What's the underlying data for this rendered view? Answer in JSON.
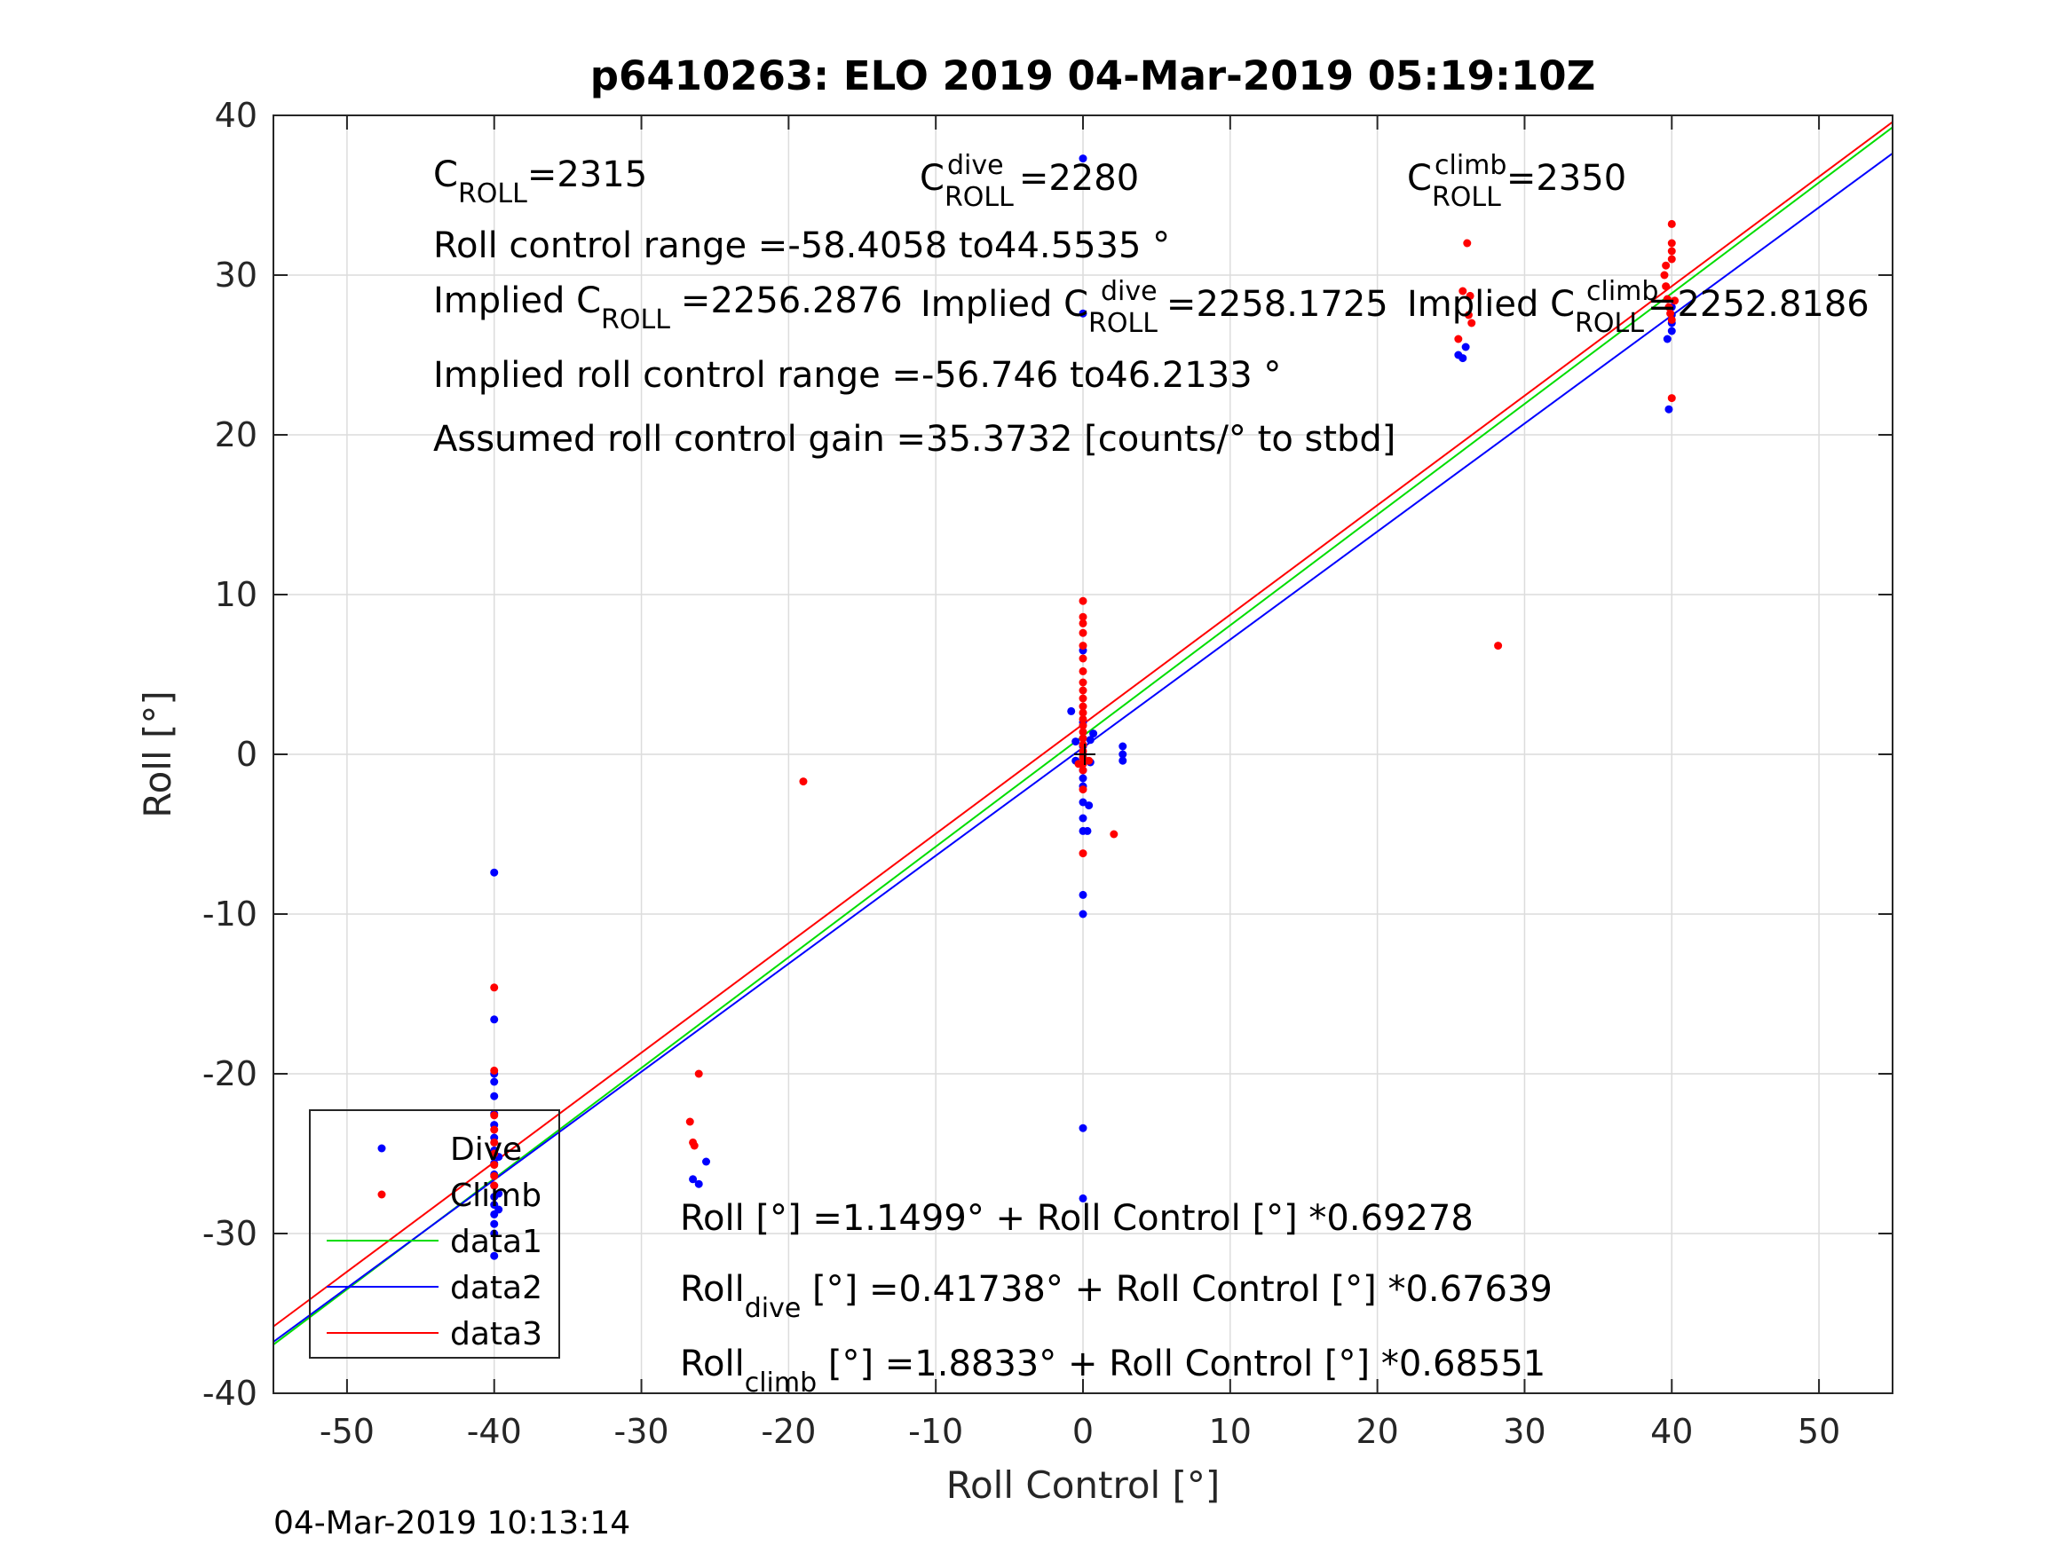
{
  "chart_data": {
    "type": "scatter",
    "title": "p6410263: ELO 2019 04-Mar-2019 05:19:10Z",
    "xlabel": "Roll Control [°]",
    "ylabel": "Roll [°]",
    "timestamp": "04-Mar-2019 10:13:14",
    "xlim": [
      -55,
      55
    ],
    "ylim": [
      -40,
      40
    ],
    "grid": true,
    "legend_position": "bottom-left",
    "xticks": [
      -50,
      -40,
      -30,
      -20,
      -10,
      0,
      10,
      20,
      30,
      40,
      50
    ],
    "yticks": [
      -40,
      -30,
      -20,
      -10,
      0,
      10,
      20,
      30,
      40
    ],
    "xtick_labels": [
      "-50",
      "-40",
      "-30",
      "-20",
      "-10",
      "0",
      "10",
      "20",
      "30",
      "40",
      "50"
    ],
    "ytick_labels": [
      "-40",
      "-30",
      "-20",
      "-10",
      "0",
      "10",
      "20",
      "30",
      "40"
    ],
    "annotations": {
      "c_roll_main": "C",
      "c_roll_sub": "ROLL",
      "c_roll_value": "=2315",
      "c_dive_main": "C",
      "c_dive_sup": "dive",
      "c_dive_sub": "ROLL",
      "c_dive_value": "=2280",
      "c_climb_main": "C",
      "c_climb_sup": "climb",
      "c_climb_sub": "ROLL",
      "c_climb_value": "=2350",
      "roll_range": "Roll control range =-58.4058 to44.5535 °",
      "implied_main": "Implied C",
      "implied_sub": "ROLL",
      "implied_value": "=2256.2876",
      "implied_dive_main": "Implied C",
      "implied_dive_sup": "dive",
      "implied_dive_sub": "ROLL",
      "implied_dive_value": "=2258.1725",
      "implied_climb_main": "Implied C",
      "implied_climb_sup": "climb",
      "implied_climb_sub": "ROLL",
      "implied_climb_value": "=2252.8186",
      "implied_range": "Implied roll control range =-56.746 to46.2133 °",
      "gain": "Assumed roll control gain =35.3732 [counts/° to stbd]",
      "eq_all": "Roll [°] =1.1499° + Roll Control [°] *0.69278",
      "eq_dive_main": "Roll",
      "eq_dive_sub": "dive",
      "eq_dive_rest": " [°] =0.41738° + Roll Control [°] *0.67639",
      "eq_climb_main": "Roll",
      "eq_climb_sub": "climb",
      "eq_climb_rest": " [°] =1.8833° + Roll Control [°] *0.68551"
    },
    "colors": {
      "dive": "#0000ff",
      "climb": "#ff0000",
      "data1": "#00dd00",
      "data2": "#0000ff",
      "data3": "#ff0000"
    },
    "series": [
      {
        "name": "Dive",
        "kind": "points",
        "color": "#0000ff",
        "points": [
          [
            -40,
            -7.4
          ],
          [
            -40,
            -16.6
          ],
          [
            -40,
            -20
          ],
          [
            -40,
            -20.5
          ],
          [
            -40,
            -21.4
          ],
          [
            -40,
            -22.5
          ],
          [
            -40,
            -23.2
          ],
          [
            -40,
            -24
          ],
          [
            -40,
            -24.8
          ],
          [
            -40,
            -25.6
          ],
          [
            -40,
            -26.3
          ],
          [
            -40,
            -27
          ],
          [
            -40,
            -27.7
          ],
          [
            -40,
            -28.2
          ],
          [
            -40,
            -28.8
          ],
          [
            -40,
            -29.4
          ],
          [
            -40,
            -30
          ],
          [
            -40,
            -31.4
          ],
          [
            -39.7,
            -25.2
          ],
          [
            -39.7,
            -27.5
          ],
          [
            -39.7,
            -28.5
          ],
          [
            -26.5,
            -26.6
          ],
          [
            -26.1,
            -26.9
          ],
          [
            -25.6,
            -25.5
          ],
          [
            0,
            37.3
          ],
          [
            0,
            27.6
          ],
          [
            0,
            6.5
          ],
          [
            0,
            2
          ],
          [
            0,
            1
          ],
          [
            0,
            0.5
          ],
          [
            0,
            0
          ],
          [
            0,
            -0.5
          ],
          [
            0,
            -1
          ],
          [
            0,
            -1.5
          ],
          [
            0,
            -2
          ],
          [
            0,
            -3
          ],
          [
            0,
            -4
          ],
          [
            0,
            -4.8
          ],
          [
            0,
            -8.8
          ],
          [
            0,
            -10
          ],
          [
            0,
            -23.4
          ],
          [
            0,
            -27.8
          ],
          [
            -0.5,
            0.8
          ],
          [
            -0.5,
            -0.4
          ],
          [
            0.5,
            0.9
          ],
          [
            0.5,
            -0.5
          ],
          [
            0.4,
            -3.2
          ],
          [
            0.3,
            -4.8
          ],
          [
            -0.8,
            2.7
          ],
          [
            0.7,
            1.3
          ],
          [
            2.7,
            0.5
          ],
          [
            2.7,
            0
          ],
          [
            2.7,
            -0.4
          ],
          [
            25.5,
            25
          ],
          [
            25.8,
            24.8
          ],
          [
            26,
            25.5
          ],
          [
            39.7,
            26
          ],
          [
            39.8,
            21.6
          ],
          [
            40,
            26.5
          ],
          [
            40,
            27
          ],
          [
            40,
            27.5
          ],
          [
            40,
            28
          ]
        ]
      },
      {
        "name": "Climb",
        "kind": "points",
        "color": "#ff0000",
        "points": [
          [
            -40,
            -14.6
          ],
          [
            -40,
            -19.8
          ],
          [
            -40,
            -22.6
          ],
          [
            -40,
            -23.5
          ],
          [
            -40,
            -24.3
          ],
          [
            -40,
            -25
          ],
          [
            -40,
            -25.7
          ],
          [
            -40,
            -26.4
          ],
          [
            -40,
            -27
          ],
          [
            -26.7,
            -23
          ],
          [
            -26.5,
            -24.3
          ],
          [
            -26.4,
            -24.5
          ],
          [
            -26.1,
            -20
          ],
          [
            -19,
            -1.7
          ],
          [
            0,
            9.6
          ],
          [
            0,
            8.6
          ],
          [
            0,
            8.2
          ],
          [
            0,
            7.6
          ],
          [
            0,
            6.8
          ],
          [
            0,
            6
          ],
          [
            0,
            5.2
          ],
          [
            0,
            4.5
          ],
          [
            0,
            4
          ],
          [
            0,
            3.5
          ],
          [
            0,
            3
          ],
          [
            0,
            2.6
          ],
          [
            0,
            2.2
          ],
          [
            0,
            1.8
          ],
          [
            0,
            1.4
          ],
          [
            0,
            1
          ],
          [
            0,
            0.6
          ],
          [
            0,
            0.2
          ],
          [
            0,
            -0.2
          ],
          [
            0,
            -0.6
          ],
          [
            0,
            -1
          ],
          [
            0,
            -2.2
          ],
          [
            0,
            -6.2
          ],
          [
            0.4,
            -0.4
          ],
          [
            -0.3,
            -0.6
          ],
          [
            2.1,
            -5
          ],
          [
            25.5,
            26
          ],
          [
            25.8,
            29
          ],
          [
            26.1,
            32
          ],
          [
            26.3,
            28.7
          ],
          [
            26.2,
            27.5
          ],
          [
            26.4,
            27
          ],
          [
            28.2,
            6.8
          ],
          [
            39.5,
            30
          ],
          [
            39.6,
            29.3
          ],
          [
            39.7,
            28.5
          ],
          [
            39.8,
            28
          ],
          [
            39.9,
            27.6
          ],
          [
            40,
            27.2
          ],
          [
            40,
            31
          ],
          [
            40,
            31.5
          ],
          [
            40,
            32
          ],
          [
            40,
            33.2
          ],
          [
            40,
            22.3
          ],
          [
            40.2,
            28.4
          ],
          [
            39.6,
            30.6
          ]
        ]
      },
      {
        "name": "data1",
        "kind": "line",
        "color": "#00dd00",
        "intercept": 1.1499,
        "slope": 0.69278
      },
      {
        "name": "data2",
        "kind": "line",
        "color": "#0000ff",
        "intercept": 0.41738,
        "slope": 0.67639
      },
      {
        "name": "data3",
        "kind": "line",
        "color": "#ff0000",
        "intercept": 1.8833,
        "slope": 0.68551
      }
    ]
  }
}
